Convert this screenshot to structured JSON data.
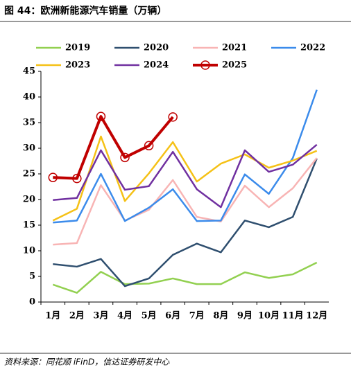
{
  "title": "图 44：欧洲新能源汽车销量（万辆）",
  "source": "资料来源：同花顺 iFinD，信达证券研发中心",
  "chart_data": {
    "type": "line",
    "categories": [
      "1月",
      "2月",
      "3月",
      "4月",
      "5月",
      "6月",
      "7月",
      "8月",
      "9月",
      "10月",
      "11月",
      "12月"
    ],
    "ylim": [
      0,
      45
    ],
    "yticks": [
      0,
      5,
      10,
      15,
      20,
      25,
      30,
      35,
      40,
      45
    ],
    "series": [
      {
        "name": "2019",
        "color": "#92d050",
        "values": [
          3.4,
          1.8,
          5.9,
          3.5,
          3.6,
          4.6,
          3.5,
          3.5,
          5.8,
          4.7,
          5.4,
          7.7
        ]
      },
      {
        "name": "2020",
        "color": "#2f4f6f",
        "values": [
          7.4,
          6.9,
          8.4,
          3.1,
          4.6,
          9.2,
          11.4,
          9.7,
          15.9,
          14.6,
          16.6,
          28.0
        ]
      },
      {
        "name": "2021",
        "color": "#f8b4b4",
        "values": [
          11.2,
          11.5,
          22.8,
          15.9,
          18.0,
          23.8,
          16.6,
          15.7,
          22.7,
          18.5,
          22.2,
          28.1
        ]
      },
      {
        "name": "2022",
        "color": "#3b8beb",
        "values": [
          15.5,
          15.9,
          25.0,
          15.8,
          18.4,
          22.0,
          15.8,
          15.9,
          24.9,
          21.1,
          28.1,
          41.4
        ]
      },
      {
        "name": "2023",
        "color": "#f5c116",
        "values": [
          15.9,
          18.2,
          32.3,
          19.7,
          25.1,
          31.2,
          23.5,
          27.0,
          28.8,
          26.2,
          27.6,
          29.5
        ]
      },
      {
        "name": "2024",
        "color": "#7030a0",
        "values": [
          19.9,
          20.3,
          29.6,
          21.9,
          22.6,
          29.3,
          22.0,
          18.5,
          29.6,
          25.4,
          26.8,
          30.7
        ]
      },
      {
        "name": "2025",
        "color": "#c00000",
        "markers": true,
        "values": [
          24.3,
          24.1,
          36.2,
          28.2,
          30.5,
          36.1,
          null,
          null,
          null,
          null,
          null,
          null
        ]
      }
    ]
  }
}
